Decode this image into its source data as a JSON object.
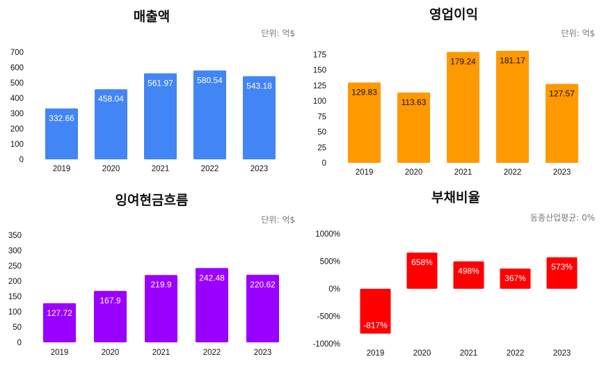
{
  "chart_data": [
    {
      "type": "bar",
      "title": "매출액",
      "unit_note": "단위: 억$",
      "categories": [
        "2019",
        "2020",
        "2021",
        "2022",
        "2023"
      ],
      "series": [
        {
          "values": [
            332.66,
            458.04,
            561.97,
            580.54,
            543.18
          ]
        }
      ],
      "value_labels": [
        "332.66",
        "458.04",
        "561.97",
        "580.54",
        "543.18"
      ],
      "yticks": [
        "0",
        "100",
        "200",
        "300",
        "400",
        "500",
        "600",
        "700"
      ],
      "ylim": [
        0,
        700
      ],
      "color": "#4285f4",
      "label_color": "#ffffff",
      "grid": false
    },
    {
      "type": "bar",
      "title": "영업이익",
      "unit_note": "단위: 억$",
      "categories": [
        "2019",
        "2020",
        "2021",
        "2022",
        "2023"
      ],
      "series": [
        {
          "values": [
            129.83,
            113.63,
            179.24,
            181.17,
            127.57
          ]
        }
      ],
      "value_labels": [
        "129.83",
        "113.63",
        "179.24",
        "181.17",
        "127.57"
      ],
      "yticks": [
        "0",
        "25",
        "50",
        "75",
        "100",
        "125",
        "150",
        "175"
      ],
      "ylim": [
        0,
        181.17
      ],
      "color": "#ff9900",
      "label_color": "#111111",
      "grid": false
    },
    {
      "type": "bar",
      "title": "잉여현금흐름",
      "unit_note": "단위: 억$",
      "categories": [
        "2019",
        "2020",
        "2021",
        "2022",
        "2023"
      ],
      "series": [
        {
          "values": [
            127.72,
            167.9,
            219.9,
            242.48,
            220.62
          ]
        }
      ],
      "value_labels": [
        "127.72",
        "167.9",
        "219.9",
        "242.48",
        "220.62"
      ],
      "yticks": [
        "0",
        "50",
        "100",
        "150",
        "200",
        "250",
        "300",
        "350"
      ],
      "ylim": [
        0,
        350
      ],
      "color": "#9900ff",
      "label_color": "#ffffff",
      "grid": false
    },
    {
      "type": "bar",
      "title": "부채비율",
      "unit_note": "동종산업평균: 0%",
      "categories": [
        "2019",
        "2020",
        "2021",
        "2022",
        "2023"
      ],
      "series": [
        {
          "values": [
            -817,
            658,
            498,
            367,
            573
          ]
        }
      ],
      "value_labels": [
        "-817%",
        "658%",
        "498%",
        "367%",
        "573%"
      ],
      "yticks": [
        "-1000%",
        "-500%",
        "0%",
        "500%",
        "1000%"
      ],
      "ylim": [
        -1000,
        1000
      ],
      "color": "#ff0000",
      "label_color": "#ffffff",
      "grid": false
    }
  ]
}
